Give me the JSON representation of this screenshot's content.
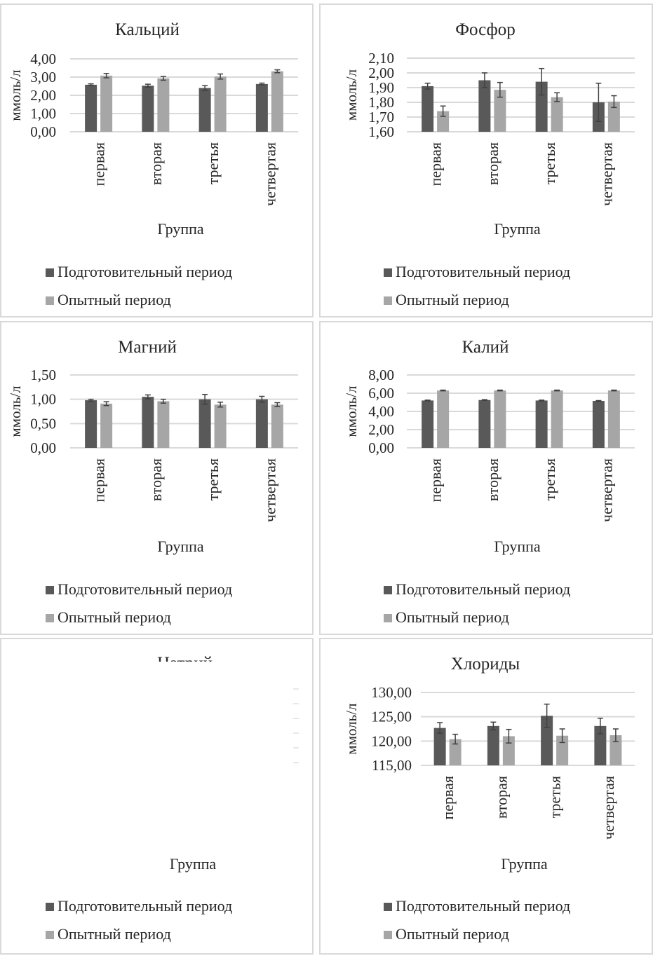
{
  "chart_data": [
    {
      "type": "bar",
      "title": "Кальций",
      "ylabel": "ммоль/л",
      "xlabel": "Группа",
      "categories": [
        "первая",
        "вторая",
        "третья",
        "четвертая"
      ],
      "ylim": [
        0,
        4
      ],
      "yticks": [
        0,
        1,
        2,
        3,
        4
      ],
      "grid": true,
      "legend_position": "bottom",
      "series": [
        {
          "name": "Подготовительный период",
          "color": "#595959",
          "values": [
            2.58,
            2.53,
            2.4,
            2.62
          ],
          "errors": [
            0.05,
            0.08,
            0.13,
            0.05
          ]
        },
        {
          "name": "Опытный период",
          "color": "#a6a6a6",
          "values": [
            3.08,
            2.93,
            3.03,
            3.32
          ],
          "errors": [
            0.12,
            0.1,
            0.14,
            0.08
          ]
        }
      ]
    },
    {
      "type": "bar",
      "title": "Фосфор",
      "ylabel": "ммоль/л",
      "xlabel": "Группа",
      "categories": [
        "первая",
        "вторая",
        "третья",
        "четвертая"
      ],
      "ylim": [
        1.6,
        2.1
      ],
      "yticks": [
        1.6,
        1.7,
        1.8,
        1.9,
        2.0,
        2.1
      ],
      "grid": true,
      "legend_position": "bottom",
      "series": [
        {
          "name": "Подготовительный период",
          "color": "#595959",
          "values": [
            1.91,
            1.95,
            1.94,
            1.8
          ],
          "errors": [
            0.02,
            0.05,
            0.09,
            0.13
          ]
        },
        {
          "name": "Опытный период",
          "color": "#a6a6a6",
          "values": [
            1.74,
            1.885,
            1.835,
            1.805
          ],
          "errors": [
            0.035,
            0.05,
            0.03,
            0.04
          ]
        }
      ]
    },
    {
      "type": "bar",
      "title": "Магний",
      "ylabel": "ммоль/л",
      "xlabel": "Группа",
      "categories": [
        "первая",
        "вторая",
        "третья",
        "четвертая"
      ],
      "ylim": [
        0,
        1.5
      ],
      "yticks": [
        0,
        0.5,
        1.0,
        1.5
      ],
      "grid": true,
      "legend_position": "bottom",
      "series": [
        {
          "name": "Подготовительный период",
          "color": "#595959",
          "values": [
            0.98,
            1.05,
            1.0,
            1.0
          ],
          "errors": [
            0.02,
            0.04,
            0.1,
            0.06
          ]
        },
        {
          "name": "Опытный период",
          "color": "#a6a6a6",
          "values": [
            0.91,
            0.96,
            0.89,
            0.89
          ],
          "errors": [
            0.04,
            0.04,
            0.05,
            0.04
          ]
        }
      ]
    },
    {
      "type": "bar",
      "title": "Калий",
      "ylabel": "ммоль/л",
      "xlabel": "Группа",
      "categories": [
        "первая",
        "вторая",
        "третья",
        "четвертая"
      ],
      "ylim": [
        0,
        8
      ],
      "yticks": [
        0,
        2,
        4,
        6,
        8
      ],
      "grid": true,
      "legend_position": "bottom",
      "series": [
        {
          "name": "Подготовительный период",
          "color": "#595959",
          "values": [
            5.2,
            5.25,
            5.2,
            5.15
          ],
          "errors": [
            0.04,
            0.04,
            0.04,
            0.04
          ]
        },
        {
          "name": "Опытный период",
          "color": "#a6a6a6",
          "values": [
            6.3,
            6.3,
            6.3,
            6.3
          ],
          "errors": [
            0.04,
            0.04,
            0.04,
            0.04
          ]
        }
      ]
    },
    {
      "type": "bar",
      "title": "Натрий",
      "xlabel": "Группа",
      "legend_position": "bottom",
      "series": [
        {
          "name": "Подготовительный период",
          "color": "#595959"
        },
        {
          "name": "Опытный период",
          "color": "#a6a6a6"
        }
      ]
    },
    {
      "type": "bar",
      "title": "Хлориды",
      "ylabel": "ммоль/л",
      "xlabel": "Группа",
      "categories": [
        "первая",
        "вторая",
        "третья",
        "четвертая"
      ],
      "ylim": [
        115,
        130
      ],
      "yticks": [
        115,
        120,
        125,
        130
      ],
      "grid": true,
      "legend_position": "bottom",
      "series": [
        {
          "name": "Подготовительный период",
          "color": "#595959",
          "values": [
            122.7,
            123.1,
            125.2,
            123.1
          ],
          "errors": [
            1.1,
            0.8,
            2.4,
            1.6
          ]
        },
        {
          "name": "Опытный период",
          "color": "#a6a6a6",
          "values": [
            120.4,
            121.0,
            121.1,
            121.2
          ],
          "errors": [
            1.0,
            1.4,
            1.4,
            1.3
          ]
        }
      ]
    }
  ]
}
